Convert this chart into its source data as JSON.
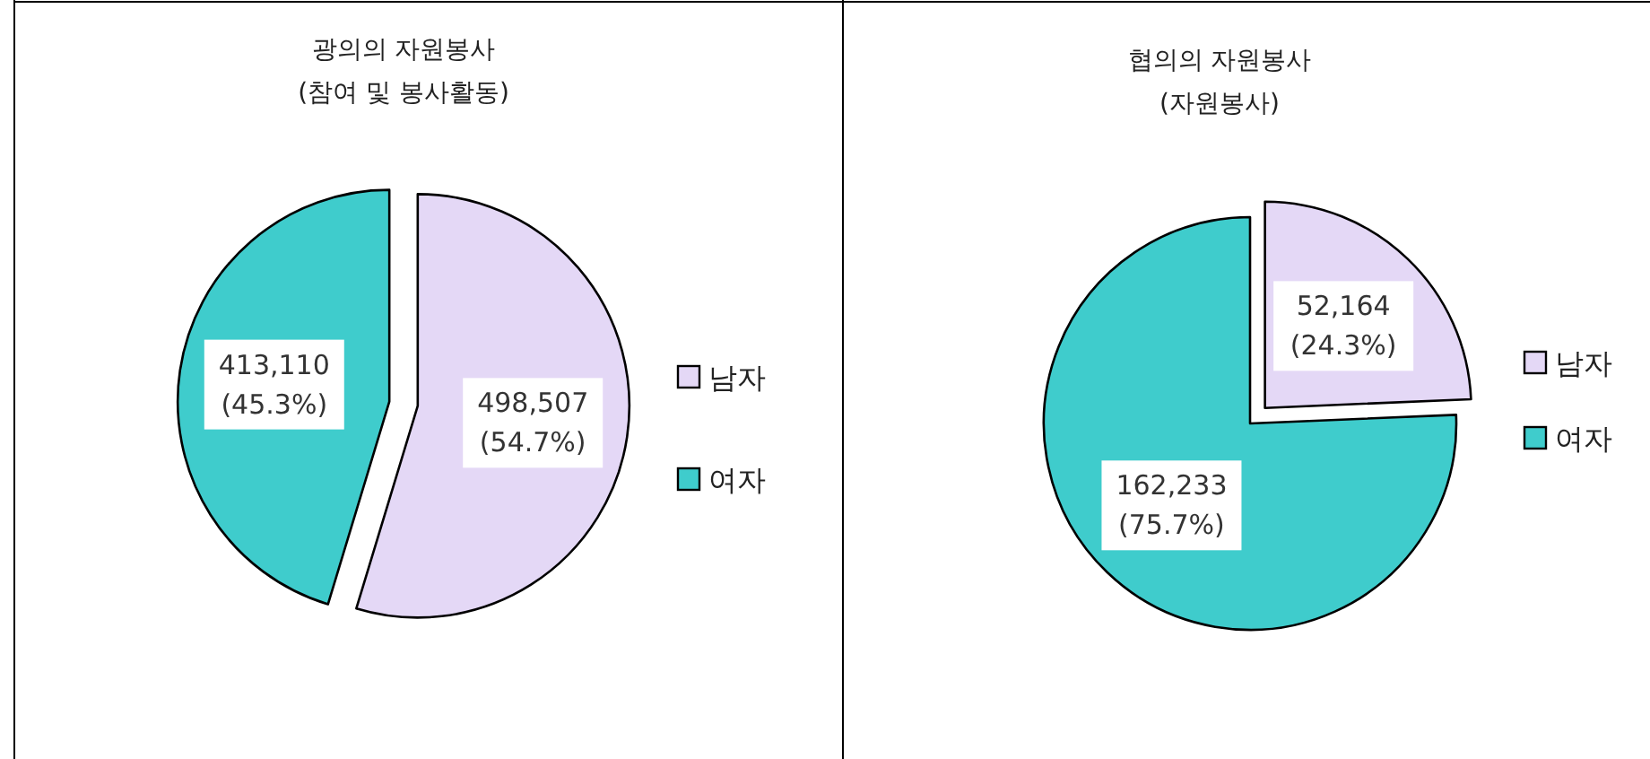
{
  "chart_data": [
    {
      "type": "pie",
      "title": "광의의 자원봉사",
      "subtitle": "(참여 및 봉사활동)",
      "categories": [
        "남자",
        "여자"
      ],
      "values": [
        498507,
        413110
      ],
      "value_labels": [
        "498,507 (54.7%)",
        "413,110 (45.3%)"
      ],
      "colors": [
        "#e4d8f6",
        "#3fcccc"
      ],
      "legend": "right"
    },
    {
      "type": "pie",
      "title": "협의의 자원봉사",
      "subtitle": "(자원봉사)",
      "categories": [
        "남자",
        "여자"
      ],
      "values": [
        52164,
        162233
      ],
      "value_labels": [
        "52,164 (24.3%)",
        "162,233 (75.7%)"
      ],
      "colors": [
        "#e4d8f6",
        "#3fcccc"
      ],
      "legend": "right"
    }
  ]
}
